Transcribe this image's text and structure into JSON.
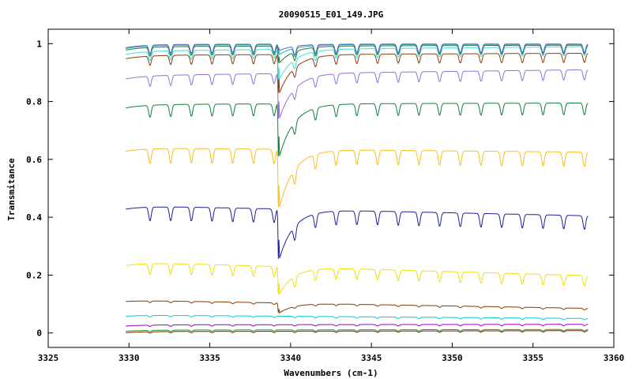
{
  "chart_data": {
    "type": "line",
    "title": "20090515_E01_149.JPG",
    "xlabel": "Wavenumbers (cm-1)",
    "ylabel": "Transmitance",
    "xlim": [
      3325,
      3360
    ],
    "ylim": [
      -0.05,
      1.05
    ],
    "x_ticks": [
      "3325",
      "3330",
      "3335",
      "3340",
      "3345",
      "3350",
      "3355",
      "3360"
    ],
    "y_ticks": [
      "0",
      "0.2",
      "0.4",
      "0.6",
      "0.8",
      "1"
    ],
    "x_range_data": [
      3329.8,
      3358.4
    ],
    "grid": false,
    "legend": "none",
    "series": [
      {
        "color": "#7f2200",
        "start": 0.005,
        "end": 0.008,
        "main_dip": 0.0
      },
      {
        "color": "#20a020",
        "start": 0.01,
        "end": 0.012,
        "main_dip": 0.0
      },
      {
        "color": "#9400d3",
        "start": 0.028,
        "end": 0.03,
        "main_dip": 0.0
      },
      {
        "color": "#00ced1",
        "start": 0.062,
        "end": 0.05,
        "main_dip": 0.0
      },
      {
        "color": "#8b3a00",
        "start": 0.113,
        "end": 0.085,
        "main_dip": 0.067
      },
      {
        "color": "#f0e000",
        "start": 0.245,
        "end": 0.198,
        "main_dip": 0.128
      },
      {
        "color": "#1e1e9e",
        "start": 0.44,
        "end": 0.405,
        "main_dip": 0.245
      },
      {
        "color": "#f5c020",
        "start": 0.64,
        "end": 0.625,
        "main_dip": 0.42
      },
      {
        "color": "#10803a",
        "start": 0.79,
        "end": 0.795,
        "main_dip": 0.598
      },
      {
        "color": "#9370db",
        "start": 0.89,
        "end": 0.91,
        "main_dip": 0.73
      },
      {
        "color": "#8b4010",
        "start": 0.96,
        "end": 0.967,
        "main_dip": 0.82
      },
      {
        "color": "#40e0d0",
        "start": 0.975,
        "end": 0.99,
        "main_dip": 0.87
      },
      {
        "color": "#1f7a3a",
        "start": 0.99,
        "end": 0.995,
        "main_dip": 0.93
      },
      {
        "color": "#20b2aa",
        "start": 0.995,
        "end": 0.998,
        "main_dip": 0.96
      },
      {
        "color": "#6060c0",
        "start": 0.998,
        "end": 0.999,
        "main_dip": 0.975
      }
    ]
  }
}
